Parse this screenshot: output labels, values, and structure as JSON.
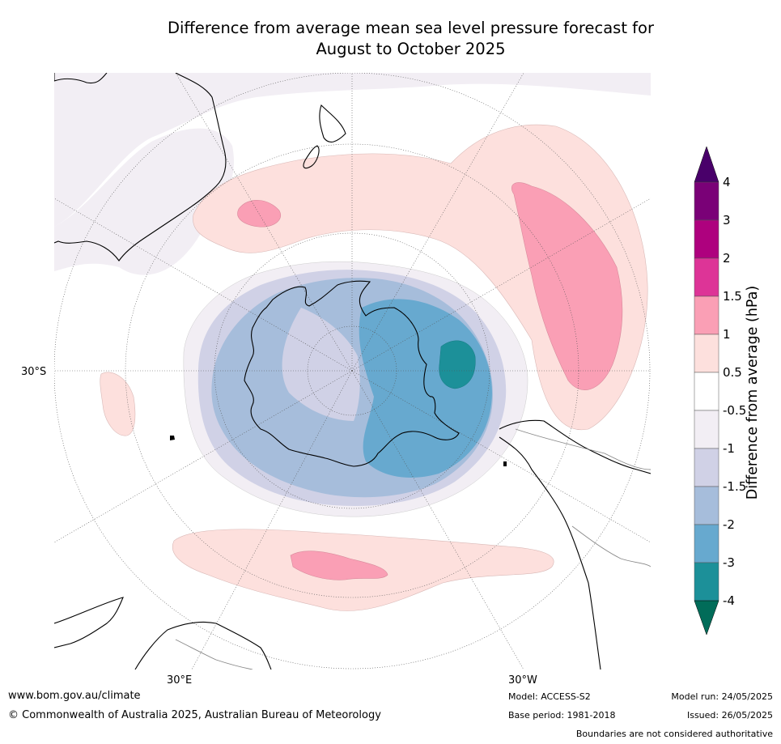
{
  "title": {
    "line1": "Difference from average mean sea level pressure forecast for",
    "line2": "August to October 2025"
  },
  "map": {
    "projection": "south polar stereographic",
    "lat_labels": [
      "30°S"
    ],
    "lon_labels": [
      "30°E",
      "30°W"
    ],
    "colors": {
      "land_outline": "#000000",
      "grid": "#555555",
      "low_1": "#f2eef4",
      "low_2": "#d0d1e6",
      "low_3": "#a6bddb",
      "low_4": "#67a9cf",
      "low_5": "#1c9099",
      "high_1": "#fde0dd",
      "high_2": "#fa9fb5"
    }
  },
  "colorbar": {
    "title": "Difference from average (hPa)",
    "ticks": [
      "4",
      "3",
      "2",
      "1.5",
      "1",
      "0.5",
      "-0.5",
      "-1",
      "-1.5",
      "-2",
      "-3",
      "-4"
    ],
    "bins": [
      {
        "color": "#7a0177"
      },
      {
        "color": "#ae017e"
      },
      {
        "color": "#dd3497"
      },
      {
        "color": "#fa9fb5"
      },
      {
        "color": "#fde0dd"
      },
      {
        "color": "#ffffff"
      },
      {
        "color": "#f2eef4"
      },
      {
        "color": "#d0d1e6"
      },
      {
        "color": "#a6bddb"
      },
      {
        "color": "#67a9cf"
      },
      {
        "color": "#1c9099"
      }
    ],
    "top_extend_color": "#49006a",
    "bottom_extend_color": "#016c59"
  },
  "footer": {
    "website": "www.bom.gov.au/climate",
    "copyright": "© Commonwealth of Australia 2025, Australian Bureau of Meteorology",
    "model": "Model: ACCESS-S2",
    "base_period": "Base period: 1981-2018",
    "model_run": "Model run: 24/05/2025",
    "issued": "Issued: 26/05/2025",
    "disclaimer": "Boundaries are not considered authoritative"
  }
}
